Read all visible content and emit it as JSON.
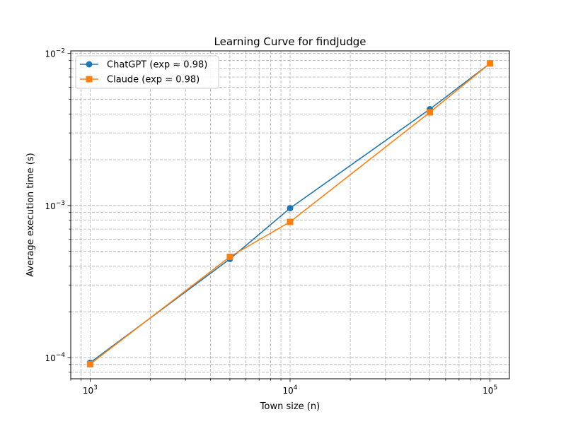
{
  "chart_data": {
    "type": "line",
    "title": "Learning Curve for findJudge",
    "xlabel": "Town size (n)",
    "ylabel": "Average execution time (s)",
    "xscale": "log",
    "yscale": "log",
    "xlim": [
      800,
      125000
    ],
    "ylim": [
      7.25e-05,
      0.0104
    ],
    "x": [
      1000,
      5000,
      10000,
      50000,
      100000
    ],
    "xticks": [
      {
        "value": 1000,
        "base": "10",
        "exp": "3"
      },
      {
        "value": 10000,
        "base": "10",
        "exp": "4"
      },
      {
        "value": 100000,
        "base": "10",
        "exp": "5"
      }
    ],
    "yticks": [
      {
        "value": 0.0001,
        "base": "10",
        "exp": "−4"
      },
      {
        "value": 0.001,
        "base": "10",
        "exp": "−3"
      },
      {
        "value": 0.01,
        "base": "10",
        "exp": "−2"
      }
    ],
    "grid": "major and minor, dashed",
    "legend_position": "upper-left",
    "series": [
      {
        "name": "ChatGPT (exp ≈ 0.98)",
        "color": "#1f77b4",
        "marker": "circle",
        "values": [
          9.25e-05,
          0.000445,
          0.00096,
          0.0043,
          0.0086
        ]
      },
      {
        "name": "Claude (exp ≈ 0.98)",
        "color": "#ff7f0e",
        "marker": "square",
        "values": [
          9.05e-05,
          0.00046,
          0.00078,
          0.0041,
          0.0086
        ]
      }
    ]
  }
}
